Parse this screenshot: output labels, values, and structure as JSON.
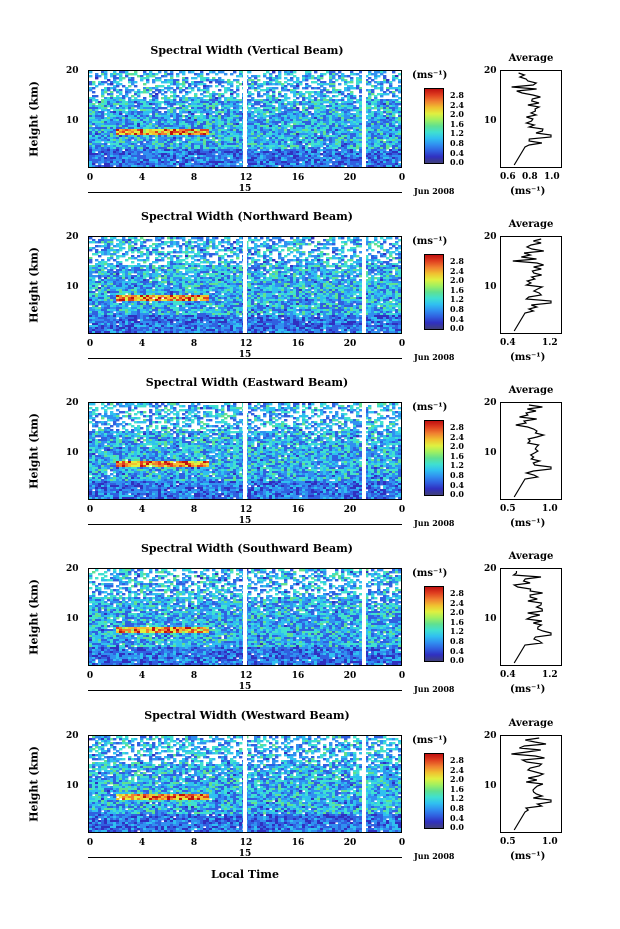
{
  "x_ticks": [
    "0",
    "4",
    "8",
    "12",
    "16",
    "20",
    "0"
  ],
  "y_ticks": [
    "20",
    "10"
  ],
  "day_label": "15",
  "month_label": "Jun 2008",
  "color_unit": "(ms⁻¹)",
  "color_ticks": [
    "2.8",
    "2.4",
    "2.0",
    "1.6",
    "1.2",
    "0.8",
    "0.4",
    "0.0"
  ],
  "ylabel": "Height (km)",
  "avg_title": "Average",
  "avg_unit": "(ms⁻¹)",
  "xlabel": "Local Time",
  "colors": {
    "low": "#2030d0",
    "mid": "#30c0e0",
    "high": "#e02020"
  },
  "chart_data": [
    {
      "type": "heatmap",
      "title": "Spectral Width (Vertical Beam)",
      "xlabel": "Local Time",
      "ylabel": "Height (km)",
      "xlim": [
        0,
        24
      ],
      "ylim": [
        2,
        20
      ],
      "clim": [
        0,
        3.0
      ],
      "x_ticks": [
        "0",
        "4",
        "8",
        "12",
        "16",
        "20",
        "0"
      ],
      "avg_xticks": [
        "0.6",
        "0.8",
        "1.0"
      ],
      "avg_xlim": [
        0.5,
        1.0
      ]
    },
    {
      "type": "heatmap",
      "title": "Spectral Width (Northward Beam)",
      "xlabel": "Local Time",
      "ylabel": "Height (km)",
      "xlim": [
        0,
        24
      ],
      "ylim": [
        2,
        20
      ],
      "clim": [
        0,
        3.0
      ],
      "x_ticks": [
        "0",
        "4",
        "8",
        "12",
        "16",
        "20",
        "0"
      ],
      "avg_xticks": [
        "0.4",
        "1.2"
      ],
      "avg_xlim": [
        0.4,
        1.3
      ]
    },
    {
      "type": "heatmap",
      "title": "Spectral Width (Eastward Beam)",
      "xlabel": "Local Time",
      "ylabel": "Height (km)",
      "xlim": [
        0,
        24
      ],
      "ylim": [
        2,
        20
      ],
      "clim": [
        0,
        3.0
      ],
      "x_ticks": [
        "0",
        "4",
        "8",
        "12",
        "16",
        "20",
        "0"
      ],
      "avg_xticks": [
        "0.5",
        "1.0"
      ],
      "avg_xlim": [
        0.4,
        1.1
      ]
    },
    {
      "type": "heatmap",
      "title": "Spectral Width (Southward Beam)",
      "xlabel": "Local Time",
      "ylabel": "Height (km)",
      "xlim": [
        0,
        24
      ],
      "ylim": [
        2,
        20
      ],
      "clim": [
        0,
        3.0
      ],
      "x_ticks": [
        "0",
        "4",
        "8",
        "12",
        "16",
        "20",
        "0"
      ],
      "avg_xticks": [
        "0.4",
        "1.2"
      ],
      "avg_xlim": [
        0.4,
        1.3
      ]
    },
    {
      "type": "heatmap",
      "title": "Spectral Width (Westward Beam)",
      "xlabel": "Local Time",
      "ylabel": "Height (km)",
      "xlim": [
        0,
        24
      ],
      "ylim": [
        2,
        20
      ],
      "clim": [
        0,
        3.0
      ],
      "x_ticks": [
        "0",
        "4",
        "8",
        "12",
        "16",
        "20",
        "0"
      ],
      "avg_xticks": [
        "0.5",
        "1.0"
      ],
      "avg_xlim": [
        0.4,
        1.1
      ]
    }
  ]
}
